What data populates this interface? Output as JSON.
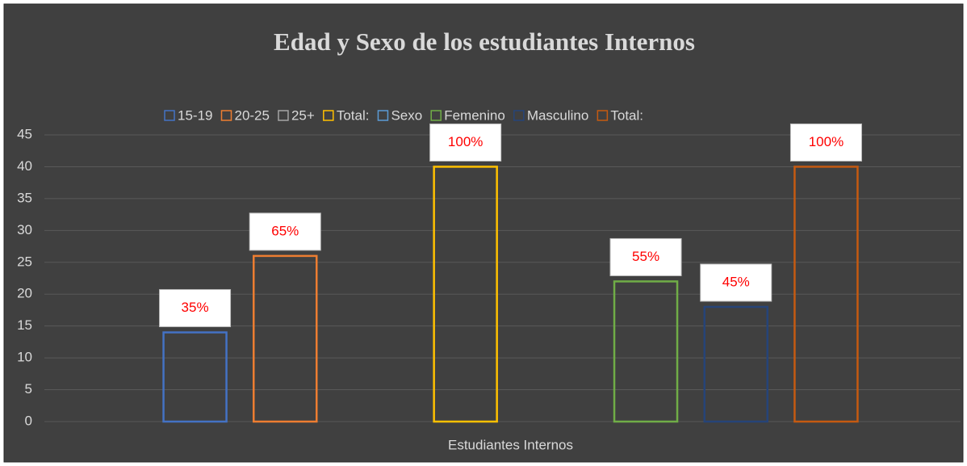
{
  "chart_data": {
    "type": "bar",
    "title": "Edad y Sexo de los estudiantes Internos",
    "categories": [
      "Estudiantes Internos"
    ],
    "series": [
      {
        "name": "15-19",
        "color": "#4472c4",
        "values": [
          14
        ],
        "annotation": "35%"
      },
      {
        "name": "20-25",
        "color": "#ed7d31",
        "values": [
          26
        ],
        "annotation": "65%"
      },
      {
        "name": "25+",
        "color": "#a5a5a5",
        "values": [
          null
        ]
      },
      {
        "name": "Total:",
        "color": "#ffc000",
        "values": [
          40
        ],
        "annotation": "100%"
      },
      {
        "name": "Sexo",
        "color": "#5b9bd5",
        "values": [
          null
        ]
      },
      {
        "name": "Femenino",
        "color": "#70ad47",
        "values": [
          22
        ],
        "annotation": "55%"
      },
      {
        "name": "Masculino",
        "color": "#264478",
        "values": [
          18
        ],
        "annotation": "45%"
      },
      {
        "name": "Total:",
        "color": "#c55a11",
        "values": [
          40
        ],
        "annotation": "100%"
      }
    ],
    "ylim": [
      0,
      45
    ],
    "yticks": [
      0,
      5,
      10,
      15,
      20,
      25,
      30,
      35,
      40,
      45
    ],
    "grid": true,
    "legend": "top"
  }
}
